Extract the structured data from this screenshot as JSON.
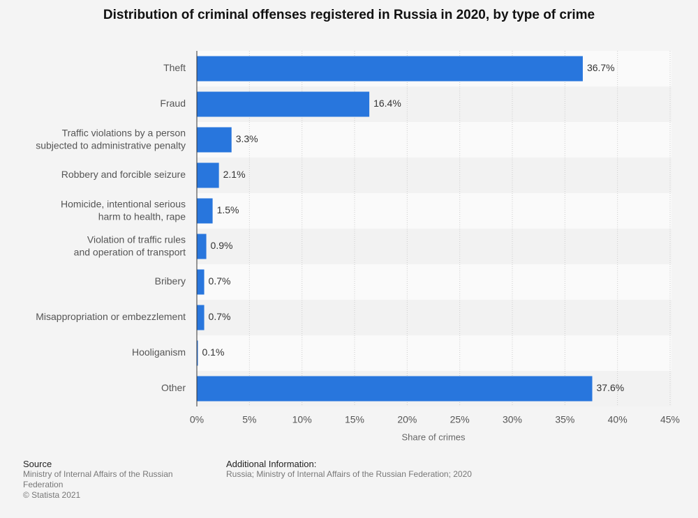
{
  "chart_data": {
    "type": "bar",
    "orientation": "horizontal",
    "title": "Distribution of criminal offenses registered in Russia in 2020, by type of crime",
    "x_label": "Share of crimes",
    "categories": [
      "Theft",
      "Fraud",
      "Traffic violations by a person\nsubjected to administrative penalty",
      "Robbery and forcible seizure",
      "Homicide, intentional serious\nharm to health, rape",
      "Violation of traffic rules\nand operation of transport",
      "Bribery",
      "Misappropriation or embezzlement",
      "Hooliganism",
      "Other"
    ],
    "values": [
      36.7,
      16.4,
      3.3,
      2.1,
      1.5,
      0.9,
      0.7,
      0.7,
      0.1,
      37.6
    ],
    "value_labels": [
      "36.7%",
      "16.4%",
      "3.3%",
      "2.1%",
      "1.5%",
      "0.9%",
      "0.7%",
      "0.7%",
      "0.1%",
      "37.6%"
    ],
    "color": "#2876dd",
    "xlim": [
      0,
      45
    ],
    "xticks": [
      {
        "value": 0,
        "label": "0%"
      },
      {
        "value": 5,
        "label": "5%"
      },
      {
        "value": 10,
        "label": "10%"
      },
      {
        "value": 15,
        "label": "15%"
      },
      {
        "value": 20,
        "label": "20%"
      },
      {
        "value": 25,
        "label": "25%"
      },
      {
        "value": 30,
        "label": "30%"
      },
      {
        "value": 35,
        "label": "35%"
      },
      {
        "value": 40,
        "label": "40%"
      },
      {
        "value": 45,
        "label": "45%"
      }
    ],
    "grid": true
  },
  "footer": {
    "source_heading": "Source",
    "source_lines": [
      "Ministry of Internal Affairs of the Russian Federation",
      "© Statista 2021"
    ],
    "info_heading": "Additional Information:",
    "info_text": "Russia; Ministry of Internal Affairs of the Russian Federation; 2020"
  }
}
